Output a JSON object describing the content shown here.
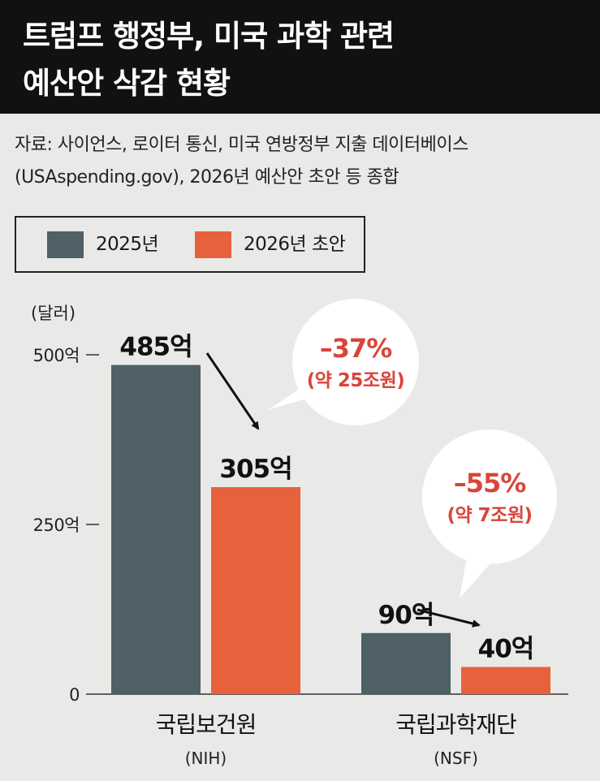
{
  "header": {
    "title_line1": "트럼프 행정부, 미국 과학 관련",
    "title_line2": "예산안 삭감 현황"
  },
  "source": {
    "line1": "자료: 사이언스, 로이터 통신, 미국 연방정부 지출 데이터베이스",
    "line2": "(USAspending.gov), 2026년 예산안 초안 등 종합"
  },
  "colors": {
    "series_2025": "#4f6066",
    "series_2026": "#e8613d",
    "callout_text": "#d9453a",
    "title_bg": "#111111"
  },
  "chart_data": {
    "type": "bar",
    "unit_label": "(달러)",
    "categories": [
      "국립보건원",
      "국립과학재단"
    ],
    "category_sublabels": [
      "(NIH)",
      "(NSF)"
    ],
    "series": [
      {
        "name": "2025년",
        "values": [
          485,
          90
        ],
        "value_labels": [
          "485억",
          "90억"
        ]
      },
      {
        "name": "2026년 초안",
        "values": [
          305,
          40
        ],
        "value_labels": [
          "305억",
          "40억"
        ]
      }
    ],
    "y_ticks": [
      {
        "value": 500,
        "label": "500억"
      },
      {
        "value": 250,
        "label": "250억"
      },
      {
        "value": 0,
        "label": "0"
      }
    ],
    "ylim": [
      0,
      500
    ],
    "legend_position": "top-left",
    "annotations": [
      {
        "category": "국립보건원",
        "change": "–37%",
        "detail": "(약 25조원)"
      },
      {
        "category": "국립과학재단",
        "change": "–55%",
        "detail": "(약 7조원)"
      }
    ]
  }
}
